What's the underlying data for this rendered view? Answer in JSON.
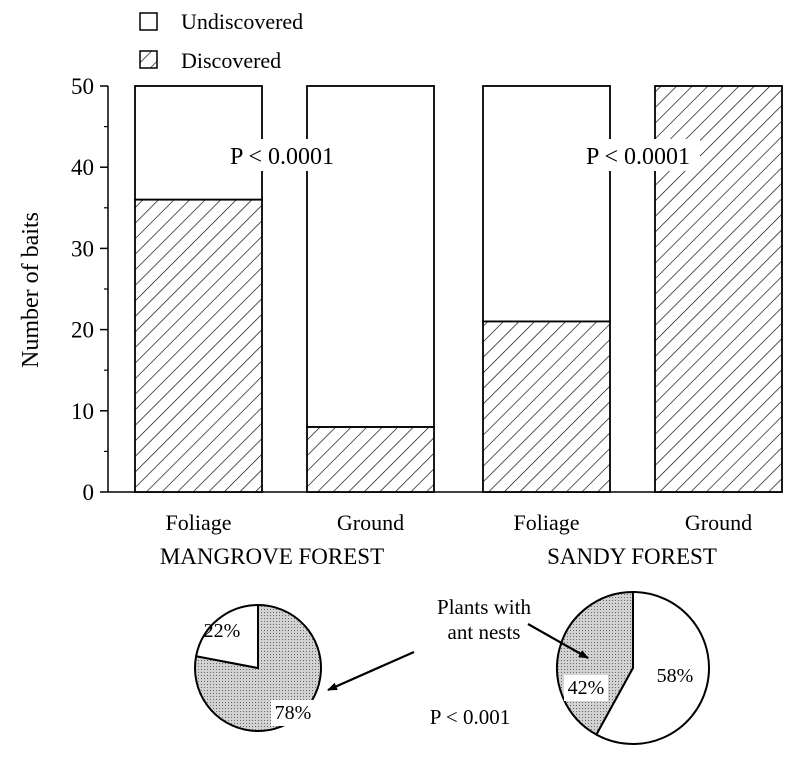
{
  "colors": {
    "ink": "#000000",
    "background": "#ffffff",
    "pie_nest": "#c8c8c8"
  },
  "chart_data": [
    {
      "type": "bar",
      "stacked": true,
      "ylabel": "Number of baits",
      "ylim": [
        0,
        50
      ],
      "yticks": [
        "0",
        "10",
        "20",
        "30",
        "40",
        "50"
      ],
      "legend": {
        "placement": "top-left",
        "entries": [
          {
            "label": "Undiscovered",
            "pattern": "blank"
          },
          {
            "label": "Discovered",
            "pattern": "hatched"
          }
        ]
      },
      "categories": [
        "Foliage",
        "Ground",
        "Foliage",
        "Ground"
      ],
      "groups": [
        "MANGROVE FOREST",
        "SANDY FOREST"
      ],
      "series": [
        {
          "name": "Discovered",
          "values": [
            36,
            8,
            21,
            50
          ]
        },
        {
          "name": "Undiscovered",
          "values": [
            14,
            42,
            29,
            0
          ]
        }
      ],
      "annotations": [
        "P < 0.0001",
        "P < 0.0001"
      ]
    },
    {
      "type": "pie",
      "group": "MANGROVE FOREST",
      "slices": [
        {
          "label": "78%",
          "value": 78,
          "nests": true
        },
        {
          "label": "22%",
          "value": 22,
          "nests": false
        }
      ]
    },
    {
      "type": "pie",
      "group": "SANDY FOREST",
      "slices": [
        {
          "label": "42%",
          "value": 42,
          "nests": true
        },
        {
          "label": "58%",
          "value": 58,
          "nests": false
        }
      ]
    }
  ],
  "pie_annotation": "Plants with\nant nests",
  "pie_pvalue": "P < 0.001"
}
